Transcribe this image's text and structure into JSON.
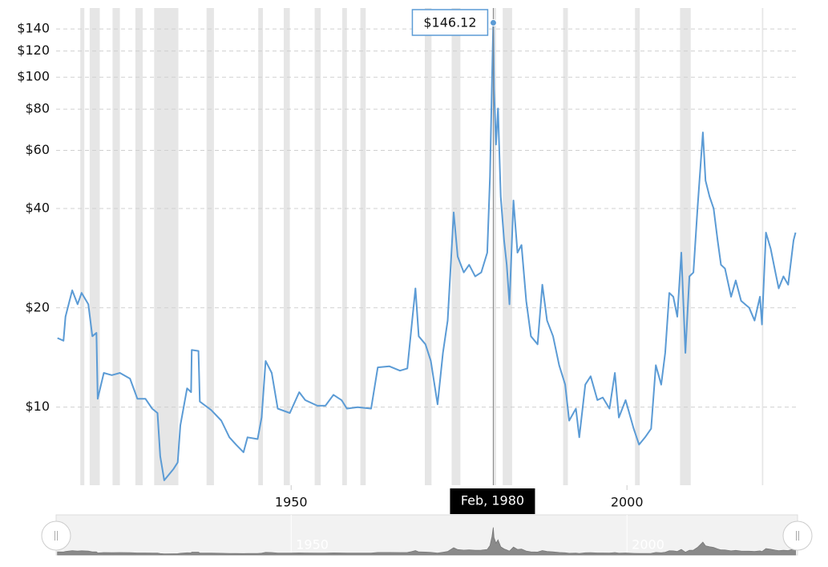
{
  "chart_data": {
    "type": "line",
    "log_scale": true,
    "grid": true,
    "xlim": [
      1915.0,
      2025.4
    ],
    "ylim": [
      5.8,
      162
    ],
    "xticks": [
      1950,
      2000
    ],
    "yticks": [
      {
        "value": 10,
        "label": "$10"
      },
      {
        "value": 20,
        "label": "$20"
      },
      {
        "value": 40,
        "label": "$40"
      },
      {
        "value": 60,
        "label": "$60"
      },
      {
        "value": 80,
        "label": "$80"
      },
      {
        "value": 100,
        "label": "$100"
      },
      {
        "value": 120,
        "label": "$120"
      },
      {
        "value": 140,
        "label": "$140"
      }
    ],
    "shaded_periods": [
      [
        1918.6,
        1919.2
      ],
      [
        1920.0,
        1921.5
      ],
      [
        1923.4,
        1924.5
      ],
      [
        1926.8,
        1927.9
      ],
      [
        1929.6,
        1933.2
      ],
      [
        1937.4,
        1938.5
      ],
      [
        1945.1,
        1945.8
      ],
      [
        1948.9,
        1949.8
      ],
      [
        1953.5,
        1954.4
      ],
      [
        1957.6,
        1958.3
      ],
      [
        1960.3,
        1961.1
      ],
      [
        1969.9,
        1970.9
      ],
      [
        1973.9,
        1975.2
      ],
      [
        1980.0,
        1980.5
      ],
      [
        1981.5,
        1982.9
      ],
      [
        1990.5,
        1991.2
      ],
      [
        2001.2,
        2001.9
      ],
      [
        2007.9,
        2009.5
      ],
      [
        2020.1,
        2020.3
      ]
    ],
    "shade_color": "#e6e6e6",
    "x": [
      1915.2,
      1916.1,
      1916.4,
      1917.4,
      1918.2,
      1918.8,
      1919.8,
      1920.4,
      1921.0,
      1921.2,
      1922.1,
      1923.3,
      1924.5,
      1926.0,
      1927.1,
      1928.3,
      1929.3,
      1930.1,
      1930.5,
      1931.1,
      1932.5,
      1933.1,
      1933.5,
      1934.5,
      1935.1,
      1935.2,
      1936.2,
      1936.4,
      1938.1,
      1939.6,
      1940.8,
      1941.8,
      1942.9,
      1943.5,
      1945.0,
      1945.6,
      1946.2,
      1947.1,
      1948.0,
      1949.8,
      1951.2,
      1952.1,
      1953.9,
      1955.1,
      1956.3,
      1957.5,
      1958.3,
      1959.9,
      1961.9,
      1962.9,
      1964.6,
      1966.2,
      1967.3,
      1967.9,
      1968.5,
      1969.0,
      1970.0,
      1970.8,
      1971.8,
      1972.6,
      1973.3,
      1974.2,
      1974.8,
      1975.7,
      1976.5,
      1977.4,
      1978.3,
      1979.2,
      1979.6,
      1979.9,
      1980.1,
      1980.2,
      1980.5,
      1980.8,
      1981.2,
      1981.7,
      1982.1,
      1982.5,
      1983.1,
      1983.7,
      1984.3,
      1985.0,
      1985.7,
      1986.7,
      1987.4,
      1988.1,
      1989.0,
      1989.9,
      1990.8,
      1991.4,
      1992.4,
      1992.9,
      1993.8,
      1994.6,
      1995.6,
      1996.4,
      1997.4,
      1998.2,
      1998.8,
      1999.8,
      2001.0,
      2001.8,
      2002.7,
      2003.6,
      2004.3,
      2005.1,
      2005.7,
      2006.3,
      2006.9,
      2007.5,
      2008.1,
      2008.7,
      2009.3,
      2009.9,
      2010.5,
      2011.3,
      2011.7,
      2012.3,
      2012.9,
      2013.5,
      2014.0,
      2014.6,
      2015.5,
      2016.2,
      2017.0,
      2018.2,
      2019.0,
      2019.8,
      2020.1,
      2020.7,
      2021.4,
      2022.1,
      2022.6,
      2023.3,
      2024.0,
      2024.8,
      2025.1
    ],
    "series": [
      {
        "color": "#5b9bd5",
        "values": [
          16.2,
          15.9,
          18.8,
          22.6,
          20.5,
          22.2,
          20.5,
          16.4,
          16.8,
          10.6,
          12.7,
          12.5,
          12.7,
          12.2,
          10.6,
          10.6,
          9.9,
          9.6,
          7.1,
          6.0,
          6.5,
          6.8,
          8.8,
          11.4,
          11.1,
          14.9,
          14.8,
          10.4,
          9.8,
          9.1,
          8.1,
          7.7,
          7.3,
          8.1,
          8.0,
          9.3,
          13.8,
          12.7,
          9.9,
          9.6,
          11.1,
          10.5,
          10.1,
          10.1,
          10.9,
          10.5,
          9.9,
          10.0,
          9.9,
          13.2,
          13.3,
          12.9,
          13.1,
          17.3,
          22.9,
          16.4,
          15.5,
          13.8,
          10.2,
          14.6,
          18.3,
          38.9,
          28.6,
          25.6,
          27.0,
          24.9,
          25.6,
          29.4,
          50.0,
          97.8,
          146.12,
          92.5,
          62.5,
          80.4,
          43.5,
          32.0,
          27.0,
          20.5,
          42.3,
          29.4,
          31.0,
          21.0,
          16.4,
          15.5,
          23.5,
          18.3,
          16.4,
          13.4,
          11.7,
          9.1,
          9.9,
          8.1,
          11.7,
          12.4,
          10.5,
          10.7,
          9.9,
          12.7,
          9.3,
          10.5,
          8.6,
          7.7,
          8.1,
          8.6,
          13.4,
          11.7,
          14.6,
          22.2,
          21.6,
          18.8,
          29.4,
          14.6,
          24.9,
          25.6,
          40.0,
          68.0,
          48.6,
          43.5,
          40.0,
          32.0,
          27.0,
          26.3,
          21.6,
          24.2,
          21.0,
          20.0,
          18.3,
          21.6,
          17.8,
          33.8,
          30.2,
          25.6,
          22.9,
          24.9,
          23.5,
          32.0,
          33.8
        ]
      }
    ],
    "tooltip": {
      "index": 70,
      "value_label": "$146.12",
      "date_label": "Feb, 1980"
    }
  }
}
